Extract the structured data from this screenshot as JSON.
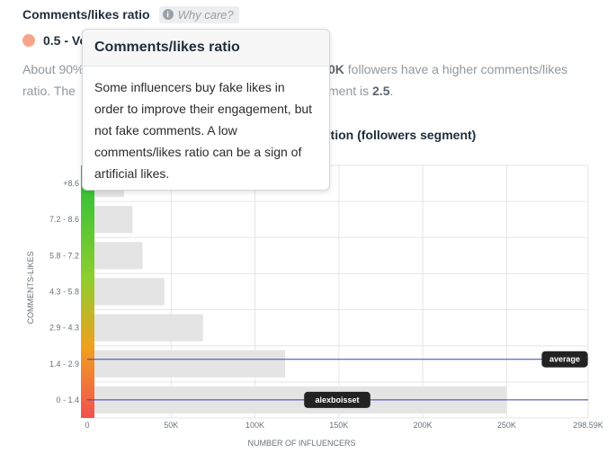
{
  "header": {
    "title": "Comments/likes ratio",
    "why_label": "Why care?",
    "info_icon": "info-icon"
  },
  "rating": {
    "dot_color": "#f6a48a",
    "text": "0.5 - Ve"
  },
  "paragraph": {
    "line1_a": "About 90%",
    "line1_b": "0K",
    "line1_c": " followers have a higher comments/likes",
    "line2_a": "ratio. The",
    "line2_b": "ment is ",
    "line2_c": "2.5",
    "line2_d": "."
  },
  "tooltip": {
    "title": "Comments/likes ratio",
    "body": "Some influencers buy fake likes in order to improve their engagement, but not fake comments. A low comments/likes ratio can be a sign of artificial likes."
  },
  "chart_title": "ution (followers segment)",
  "chart_data": {
    "type": "bar",
    "orientation": "horizontal",
    "categories": [
      "+8.6",
      "7.2 - 8.6",
      "5.8 - 7.2",
      "4.3 - 5.8",
      "2.9 - 4.3",
      "1.4 - 2.9",
      "0 - 1.4"
    ],
    "values": [
      22000,
      27000,
      33000,
      46000,
      69000,
      118000,
      250000
    ],
    "xlim": [
      0,
      298590
    ],
    "x_ticks": [
      "0",
      "50K",
      "100K",
      "150K",
      "200K",
      "250K",
      "298.59K"
    ],
    "x_tick_values": [
      0,
      50000,
      100000,
      150000,
      200000,
      250000,
      298590
    ],
    "xlabel": "NUMBER OF INFLUENCERS",
    "ylabel": "COMMENTS-LIKES",
    "grid": true,
    "bar_color": "#e4e4e4",
    "markers": [
      {
        "label": "average",
        "category": "1.4 - 2.9",
        "color": "#3f3fb0"
      },
      {
        "label": "alexboisset",
        "category": "0 - 1.4",
        "color": "#3f3fb0"
      }
    ],
    "scale_colors": [
      "#1fbf3a",
      "#8fce2e",
      "#f0a020",
      "#f25050"
    ]
  }
}
